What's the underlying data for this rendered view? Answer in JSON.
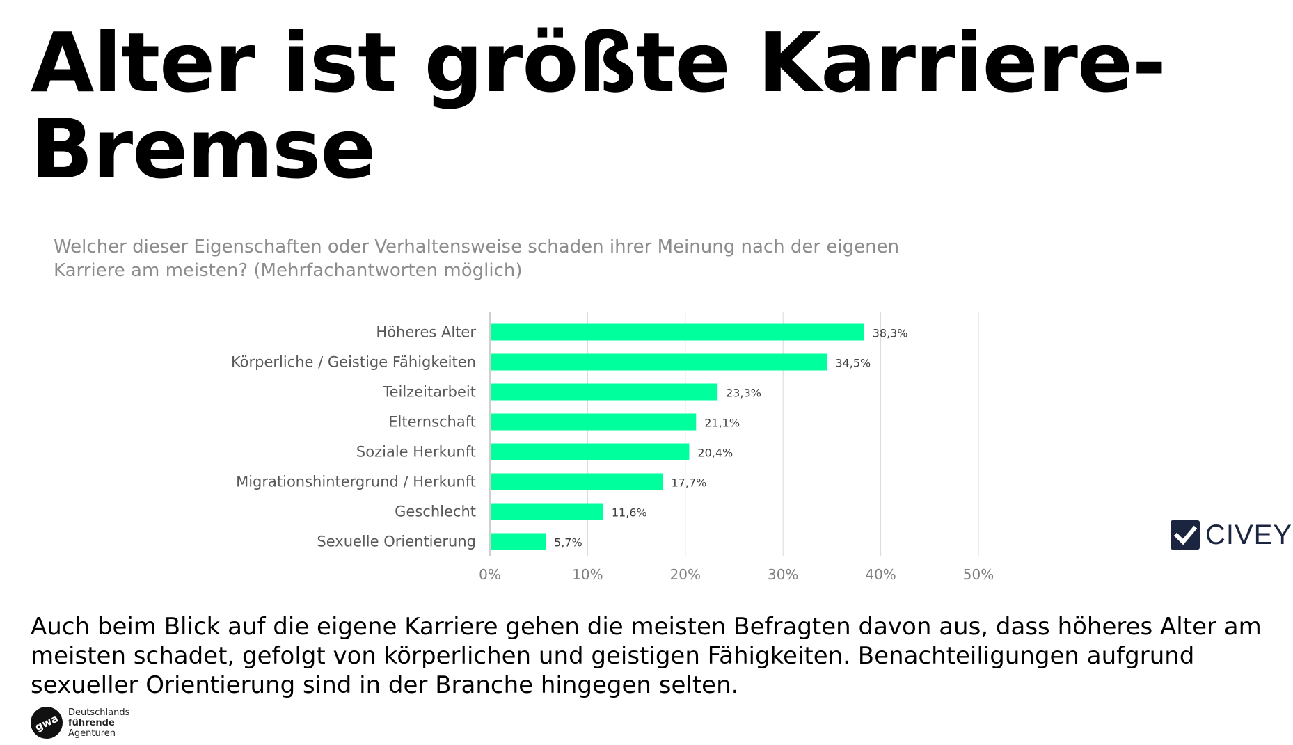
{
  "title": "Alter ist größte Karriere-Bremse",
  "question": "Welcher dieser Eigenschaften oder Verhaltensweise schaden ihrer Meinung nach der eigenen Karriere am meisten? (Mehrfachantworten möglich)",
  "chart_data": {
    "type": "bar",
    "orientation": "horizontal",
    "categories": [
      "Höheres Alter",
      "Körperliche / Geistige Fähigkeiten",
      "Teilzeitarbeit",
      "Elternschaft",
      "Soziale Herkunft",
      "Migrationshintergrund / Herkunft",
      "Geschlecht",
      "Sexuelle Orientierung"
    ],
    "values": [
      38.3,
      34.5,
      23.3,
      21.1,
      20.4,
      17.7,
      11.6,
      5.7
    ],
    "value_labels": [
      "38,3%",
      "34,5%",
      "23,3%",
      "21,1%",
      "20,4%",
      "17,7%",
      "11,6%",
      "5,7%"
    ],
    "xlim": [
      0,
      50
    ],
    "xticks": [
      0,
      10,
      20,
      30,
      40,
      50
    ],
    "xtick_labels": [
      "0%",
      "10%",
      "20%",
      "30%",
      "40%",
      "50%"
    ],
    "grid": true,
    "bar_color": "#00ff9d"
  },
  "brand": {
    "civey_label": "CIVEY",
    "civey_color": "#1b2540"
  },
  "summary": "Auch beim Blick auf die eigene Karriere gehen die meisten Befragten davon aus, dass höheres Alter am meisten schadet, gefolgt von körperlichen und geistigen Fähigkeiten. Benachteiligungen aufgrund sexueller Orientierung sind in der Branche hingegen selten.",
  "footer": {
    "badge": "gwa",
    "line1": "Deutschlands",
    "line2": "führende",
    "line3": "Agenturen"
  }
}
